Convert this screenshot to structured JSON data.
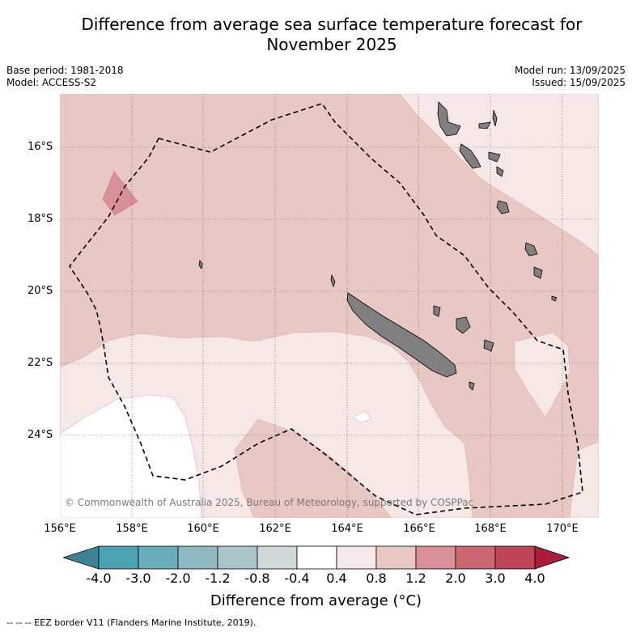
{
  "title_line1": "Difference from average sea surface temperature forecast for",
  "title_line2": "November 2025",
  "base_period": "Base period: 1981-2018",
  "model": "Model: ACCESS-S2",
  "model_run": "Model run: 13/09/2025",
  "issued": "Issued: 15/09/2025",
  "copyright": "© Commonwealth of Australia 2025, Bureau of Meteorology, supported by COSPPac",
  "lat_labels": [
    "16°S",
    "18°S",
    "20°S",
    "22°S",
    "24°S"
  ],
  "lon_labels": [
    "156°E",
    "158°E",
    "160°E",
    "162°E",
    "164°E",
    "166°E",
    "168°E",
    "170°E"
  ],
  "colorbar": {
    "ticks": [
      "-4.0",
      "-3.0",
      "-2.0",
      "-1.2",
      "-0.8",
      "-0.4",
      "0.4",
      "0.8",
      "1.2",
      "2.0",
      "3.0",
      "4.0"
    ],
    "colors": [
      "#4aa3b3",
      "#6aadbb",
      "#8fb9c3",
      "#aac6ca",
      "#cfd8da",
      "#ffffff",
      "#f5e8e7",
      "#e9c8c3",
      "#d88f95",
      "#cc6770",
      "#bd4554"
    ],
    "under_color": "#3d8393",
    "over_color": "#ab1c38",
    "label": "Difference from average (°C)"
  },
  "footer": "--  --  -- EEZ border V11 (Flanders Marine Institute, 2019).",
  "colors": {
    "anomaly_0_4_to_0_8": "#f5e8e7",
    "anomaly_0_8_to_1_2": "#e9c8c3",
    "anomaly_1_2_to_2_0": "#d88f95",
    "land": "#808080"
  }
}
